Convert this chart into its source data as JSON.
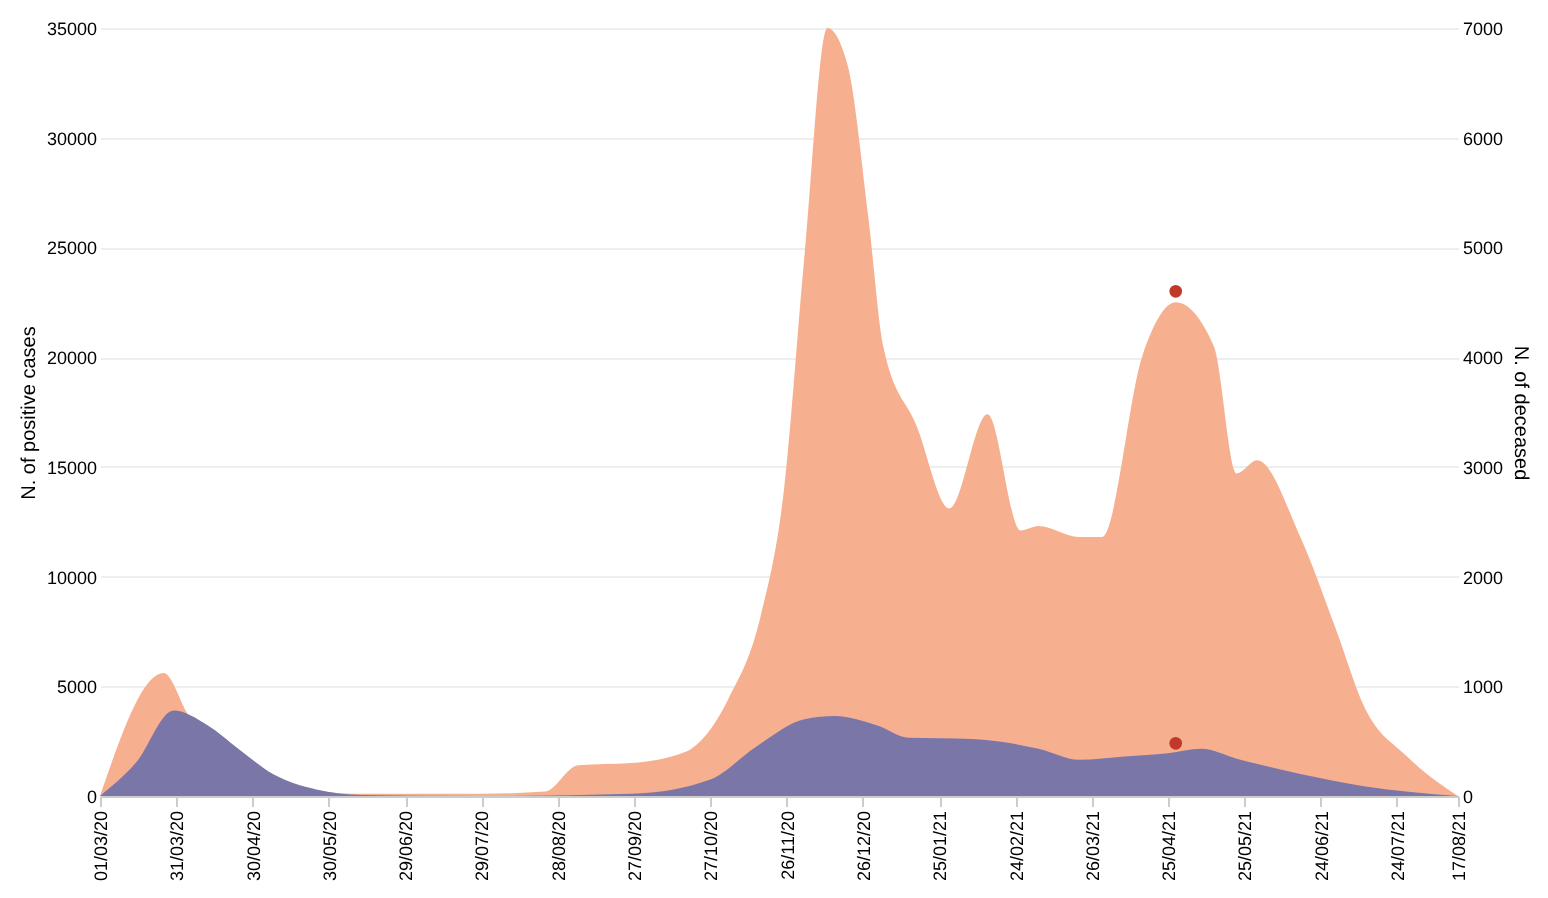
{
  "chart_data": {
    "type": "area",
    "ylabel": "N. of positive cases",
    "y2label": "N. of deceased",
    "xlim": [
      "2020-03-01",
      "2021-08-17"
    ],
    "xticks": [
      {
        "value": "2020-03-01",
        "label": "01/03/20"
      },
      {
        "value": "2020-03-31",
        "label": "31/03/20"
      },
      {
        "value": "2020-04-30",
        "label": "30/04/20"
      },
      {
        "value": "2020-05-30",
        "label": "30/05/20"
      },
      {
        "value": "2020-06-29",
        "label": "29/06/20"
      },
      {
        "value": "2020-07-29",
        "label": "29/07/20"
      },
      {
        "value": "2020-08-28",
        "label": "28/08/20"
      },
      {
        "value": "2020-09-27",
        "label": "27/09/20"
      },
      {
        "value": "2020-10-27",
        "label": "27/10/20"
      },
      {
        "value": "2020-11-26",
        "label": "26/11/20"
      },
      {
        "value": "2020-12-26",
        "label": "26/12/20"
      },
      {
        "value": "2021-01-25",
        "label": "25/01/21"
      },
      {
        "value": "2021-02-24",
        "label": "24/02/21"
      },
      {
        "value": "2021-03-26",
        "label": "26/03/21"
      },
      {
        "value": "2021-04-25",
        "label": "25/04/21"
      },
      {
        "value": "2021-05-25",
        "label": "25/05/21"
      },
      {
        "value": "2021-06-24",
        "label": "24/06/21"
      },
      {
        "value": "2021-07-24",
        "label": "24/07/21"
      },
      {
        "value": "2021-08-17",
        "label": "17/08/21"
      }
    ],
    "ylim": [
      0,
      35000
    ],
    "yticks": [
      0,
      5000,
      10000,
      15000,
      20000,
      25000,
      30000,
      35000
    ],
    "y2lim": [
      0,
      7000
    ],
    "y2ticks": [
      0,
      1000,
      2000,
      3000,
      4000,
      5000,
      6000,
      7000
    ],
    "grid": "y",
    "series": [
      {
        "color": "#f7b08f",
        "x": [
          "2020-03-01",
          "2020-03-15",
          "2020-03-26",
          "2020-04-06",
          "2020-04-18",
          "2020-05-05",
          "2020-05-22",
          "2020-06-08",
          "2020-07-29",
          "2020-08-23",
          "2020-09-05",
          "2020-09-26",
          "2020-10-17",
          "2020-11-03",
          "2020-11-16",
          "2020-11-25",
          "2020-12-03",
          "2020-12-12",
          "2020-12-20",
          "2020-12-28",
          "2021-01-03",
          "2021-01-16",
          "2021-01-29",
          "2021-02-13",
          "2021-02-26",
          "2021-03-05",
          "2021-03-21",
          "2021-03-30",
          "2021-04-15",
          "2021-04-28",
          "2021-05-13",
          "2021-05-22",
          "2021-05-30",
          "2021-06-16",
          "2021-06-30",
          "2021-07-11",
          "2021-07-28",
          "2021-08-17"
        ],
        "values": [
          0,
          null,
          5600,
          3500,
          null,
          null,
          null,
          100,
          100,
          200,
          1400,
          1500,
          2000,
          4400,
          8300,
          14000,
          24600,
          35000,
          33300,
          26500,
          20500,
          16900,
          13100,
          17400,
          12100,
          12300,
          11800,
          11800,
          20100,
          22500,
          20500,
          14700,
          15300,
          11800,
          7600,
          4100,
          1800,
          0
        ]
      },
      {
        "axis": "y2",
        "color": "#7a77a8",
        "x": [
          "2020-03-01",
          "2020-03-15",
          "2020-03-30",
          "2020-04-12",
          "2020-04-25",
          "2020-05-08",
          "2020-05-25",
          "2020-06-12",
          "2020-07-29",
          "2020-09-26",
          "2020-10-27",
          "2020-11-14",
          "2020-12-03",
          "2020-12-15",
          "2021-01-01",
          "2021-01-13",
          "2021-02-07",
          "2021-03-05",
          "2021-03-21",
          "2021-04-08",
          "2021-04-25",
          "2021-05-08",
          "2021-05-22",
          "2021-06-16",
          "2021-07-11",
          "2021-08-17"
        ],
        "values": [
          0,
          300,
          780,
          650,
          420,
          200,
          60,
          10,
          0,
          20,
          150,
          450,
          700,
          730,
          640,
          530,
          520,
          430,
          330,
          360,
          390,
          430,
          340,
          200,
          90,
          0
        ]
      },
      {
        "type": "scatter",
        "marker": "circle",
        "color": "#c0392b",
        "x": [
          "2021-04-28"
        ],
        "values": [
          23000
        ]
      },
      {
        "type": "scatter",
        "axis": "y2",
        "marker": "circle",
        "color": "#c0392b",
        "x": [
          "2021-04-28"
        ],
        "values": [
          480
        ]
      }
    ]
  }
}
